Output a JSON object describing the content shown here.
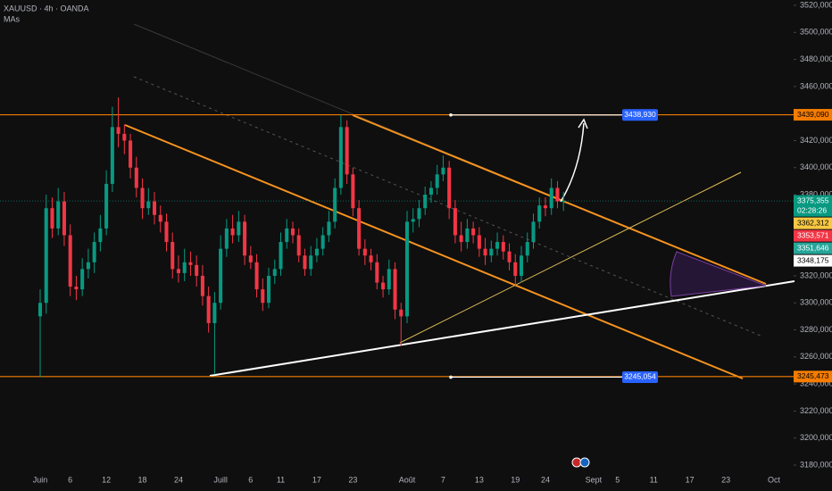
{
  "chart_data": {
    "type": "candlestick",
    "title": "XAUUSD · 4h · OANDA",
    "indicator": "MAs",
    "up_color": "#089981",
    "down_color": "#f23645",
    "grid": false,
    "ylim": [
      3180,
      3520
    ],
    "yticks": [
      {
        "value": 3180,
        "label": "3180,000"
      },
      {
        "value": 3200,
        "label": "3200,000"
      },
      {
        "value": 3220,
        "label": "3220,000"
      },
      {
        "value": 3240,
        "label": "3240,000"
      },
      {
        "value": 3260,
        "label": "3260,000"
      },
      {
        "value": 3280,
        "label": "3280,000"
      },
      {
        "value": 3300,
        "label": "3300,000"
      },
      {
        "value": 3320,
        "label": "3320,000"
      },
      {
        "value": 3340,
        "label": "3340,000"
      },
      {
        "value": 3360,
        "label": "3360,000"
      },
      {
        "value": 3380,
        "label": "3380,000"
      },
      {
        "value": 3400,
        "label": "3400,000"
      },
      {
        "value": 3420,
        "label": "3420,000"
      },
      {
        "value": 3440,
        "label": "3440,000"
      },
      {
        "value": 3460,
        "label": "3460,000"
      },
      {
        "value": 3480,
        "label": "3480,000"
      },
      {
        "value": 3500,
        "label": "3500,000"
      },
      {
        "value": 3520,
        "label": "3520,000"
      }
    ],
    "categories": [
      "Juin",
      null,
      null,
      null,
      null,
      "6",
      null,
      null,
      null,
      null,
      null,
      "12",
      null,
      null,
      null,
      null,
      null,
      "18",
      null,
      null,
      null,
      null,
      null,
      "24",
      null,
      null,
      null,
      null,
      null,
      null,
      "Juill",
      null,
      null,
      null,
      null,
      "6",
      null,
      null,
      null,
      null,
      "11",
      null,
      null,
      null,
      null,
      null,
      "17",
      null,
      null,
      null,
      null,
      null,
      "23",
      null,
      null,
      null,
      null,
      null,
      null,
      null,
      null,
      "Août",
      null,
      null,
      null,
      null,
      null,
      "7",
      null,
      null,
      null,
      null,
      null,
      "13",
      null,
      null,
      null,
      null,
      null,
      "19",
      null,
      null,
      null,
      null,
      "24",
      null,
      null,
      null,
      null,
      null,
      null,
      null,
      "Sept",
      null,
      null,
      null,
      "5",
      null,
      null,
      null,
      null,
      null,
      "11",
      null,
      null,
      null,
      null,
      null,
      "17",
      null,
      null,
      null,
      null,
      null,
      "23",
      null,
      null,
      null,
      null,
      null,
      null,
      null,
      "Oct"
    ],
    "open": [
      3290,
      3300,
      3370,
      3355,
      3375,
      3350,
      3312,
      3310,
      3325,
      3330,
      3345,
      3355,
      3388,
      3430,
      3425,
      3420,
      3400,
      3385,
      3370,
      3375,
      3365,
      3360,
      3345,
      3325,
      3322,
      3330,
      3328,
      3320,
      3305,
      3285,
      3300,
      3340,
      3355,
      3350,
      3360,
      3335,
      3330,
      3310,
      3300,
      3320,
      3325,
      3345,
      3355,
      3350,
      3335,
      3325,
      3335,
      3340,
      3350,
      3360,
      3385,
      3430,
      3395,
      3370,
      3340,
      3335,
      3330,
      3315,
      3310,
      3325,
      3295,
      3290,
      3360,
      3362,
      3370,
      3380,
      3385,
      3395,
      3400,
      3370,
      3350,
      3345,
      3355,
      3350,
      3340,
      3335,
      3340,
      3345,
      3338,
      3330,
      3320,
      3335,
      3345,
      3360,
      3372,
      3370,
      3385,
      3375,
      null,
      null,
      null,
      null,
      null,
      null,
      null,
      null,
      null,
      null,
      null,
      null,
      null,
      null,
      null,
      null,
      null,
      null,
      null,
      null,
      null,
      null,
      null,
      null,
      null,
      null,
      null,
      null,
      null,
      null,
      null,
      null,
      null,
      null,
      null
    ],
    "high": [
      3310,
      3380,
      3378,
      3385,
      3382,
      3358,
      3320,
      3333,
      3340,
      3352,
      3365,
      3398,
      3445,
      3452,
      3432,
      3425,
      3408,
      3392,
      3385,
      3382,
      3372,
      3366,
      3352,
      3335,
      3340,
      3338,
      3335,
      3328,
      3312,
      3308,
      3350,
      3362,
      3365,
      3368,
      3365,
      3342,
      3336,
      3318,
      3326,
      3332,
      3352,
      3362,
      3360,
      3355,
      3340,
      3342,
      3348,
      3356,
      3368,
      3392,
      3439,
      3435,
      3400,
      3376,
      3347,
      3340,
      3336,
      3320,
      3332,
      3330,
      3300,
      3368,
      3370,
      3376,
      3386,
      3390,
      3402,
      3409,
      3405,
      3376,
      3360,
      3362,
      3360,
      3356,
      3348,
      3346,
      3352,
      3350,
      3344,
      3336,
      3342,
      3352,
      3366,
      3378,
      3378,
      3392,
      3390,
      3382,
      null,
      null,
      null,
      null,
      null,
      null,
      null,
      null,
      null,
      null,
      null,
      null,
      null,
      null,
      null,
      null,
      null,
      null,
      null,
      null,
      null,
      null,
      null,
      null,
      null,
      null,
      null,
      null,
      null,
      null,
      null,
      null,
      null,
      null,
      null
    ],
    "low": [
      3245,
      3292,
      3348,
      3350,
      3342,
      3305,
      3302,
      3305,
      3318,
      3322,
      3338,
      3350,
      3382,
      3415,
      3410,
      3392,
      3378,
      3362,
      3365,
      3358,
      3352,
      3338,
      3318,
      3315,
      3316,
      3320,
      3312,
      3298,
      3278,
      3247,
      3295,
      3334,
      3344,
      3345,
      3328,
      3325,
      3304,
      3294,
      3296,
      3314,
      3320,
      3340,
      3344,
      3330,
      3320,
      3320,
      3330,
      3335,
      3345,
      3355,
      3380,
      3388,
      3364,
      3335,
      3328,
      3324,
      3310,
      3304,
      3306,
      3288,
      3268,
      3285,
      3352,
      3356,
      3365,
      3374,
      3380,
      3390,
      3362,
      3344,
      3338,
      3340,
      3344,
      3334,
      3328,
      3330,
      3335,
      3332,
      3324,
      3312,
      3315,
      3330,
      3340,
      3355,
      3364,
      3365,
      3370,
      3368,
      null,
      null,
      null,
      null,
      null,
      null,
      null,
      null,
      null,
      null,
      null,
      null,
      null,
      null,
      null,
      null,
      null,
      null,
      null,
      null,
      null,
      null,
      null,
      null,
      null,
      null,
      null,
      null,
      null,
      null,
      null,
      null,
      null,
      null,
      null
    ],
    "close": [
      3300,
      3370,
      3355,
      3375,
      3350,
      3312,
      3310,
      3325,
      3330,
      3345,
      3355,
      3388,
      3430,
      3425,
      3420,
      3400,
      3385,
      3370,
      3375,
      3365,
      3360,
      3345,
      3325,
      3322,
      3330,
      3328,
      3320,
      3305,
      3285,
      3300,
      3340,
      3355,
      3350,
      3360,
      3335,
      3330,
      3310,
      3300,
      3320,
      3325,
      3345,
      3355,
      3350,
      3335,
      3325,
      3335,
      3340,
      3350,
      3360,
      3385,
      3430,
      3395,
      3370,
      3340,
      3335,
      3330,
      3315,
      3310,
      3325,
      3295,
      3290,
      3360,
      3362,
      3370,
      3380,
      3385,
      3395,
      3400,
      3370,
      3350,
      3345,
      3355,
      3350,
      3340,
      3335,
      3340,
      3345,
      3338,
      3330,
      3320,
      3335,
      3345,
      3360,
      3372,
      3370,
      3385,
      3375,
      3375.355,
      null,
      null,
      null,
      null,
      null,
      null,
      null,
      null,
      null,
      null,
      null,
      null,
      null,
      null,
      null,
      null,
      null,
      null,
      null,
      null,
      null,
      null,
      null,
      null,
      null,
      null,
      null,
      null,
      null,
      null,
      null,
      null,
      null,
      null,
      null
    ],
    "price_tags": [
      {
        "value": 3439.09,
        "label": "3439,090",
        "color": "#f57c00",
        "text_color": "#000000"
      },
      {
        "value": 3375.355,
        "label": "3375,355",
        "countdown": "02:28:26",
        "color": "#089981",
        "text_color": "#ffffff"
      },
      {
        "value": 3362.312,
        "label": "3362,312",
        "color": "#f7c843",
        "text_color": "#000000"
      },
      {
        "value": 3353.571,
        "label": "3353,571",
        "color": "#f23645",
        "text_color": "#ffffff"
      },
      {
        "value": 3351.646,
        "label": "3351,646",
        "color": "#26a69a",
        "text_color": "#ffffff"
      },
      {
        "value": 3348.175,
        "label": "3348,175",
        "color": "#ffffff",
        "text_color": "#000000"
      },
      {
        "value": 3245.473,
        "label": "3245,473",
        "color": "#f57c00",
        "text_color": "#000000"
      }
    ],
    "levels": [
      {
        "value": 3438.93,
        "label": "3438,930",
        "color": "#2962ff"
      },
      {
        "value": 3245.054,
        "label": "3245,054",
        "color": "#2962ff"
      }
    ]
  }
}
